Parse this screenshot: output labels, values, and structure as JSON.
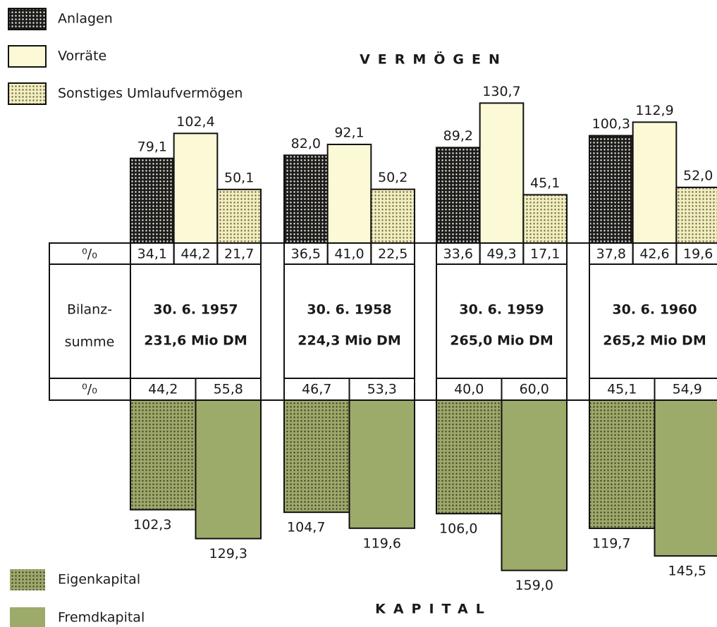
{
  "chart_data": {
    "type": "balance",
    "title_top": "VERMÖGEN",
    "title_bottom": "KAPITAL",
    "percent_label": "⁰/₀",
    "total_label": [
      "Bilanz-",
      "summe"
    ],
    "categories": [
      "30. 6. 1957",
      "30. 6. 1958",
      "30. 6. 1959",
      "30. 6. 1960"
    ],
    "totals": [
      "231,6 Mio DM",
      "224,3 Mio DM",
      "265,0 Mio DM",
      "265,2 Mio DM"
    ],
    "assets": [
      {
        "name": "Anlagen",
        "color": "#1c1c1c",
        "dot_color": "#f4f0e0",
        "values": [
          79.1,
          82.0,
          89.2,
          100.3
        ],
        "value_labels": [
          "79,1",
          "82,0",
          "89,2",
          "100,3"
        ],
        "shares": [
          34.1,
          36.5,
          33.6,
          37.8
        ],
        "share_labels": [
          "34,1",
          "36,5",
          "33,6",
          "37,8"
        ]
      },
      {
        "name": "Vorräte",
        "color": "#fcf9d6",
        "dot_color": null,
        "values": [
          102.4,
          92.1,
          130.7,
          112.9
        ],
        "value_labels": [
          "102,4",
          "92,1",
          "130,7",
          "112,9"
        ],
        "shares": [
          44.2,
          41.0,
          49.3,
          42.6
        ],
        "share_labels": [
          "44,2",
          "41,0",
          "49,3",
          "42,6"
        ]
      },
      {
        "name": "Sonstiges Umlaufvermögen",
        "color": "#f3eebe",
        "dot_color": "#6b6a4a",
        "values": [
          50.1,
          50.2,
          45.1,
          52.0
        ],
        "value_labels": [
          "50,1",
          "50,2",
          "45,1",
          "52,0"
        ],
        "shares": [
          21.7,
          22.5,
          17.1,
          19.6
        ],
        "share_labels": [
          "21,7",
          "22,5",
          "17,1",
          "19,6"
        ]
      }
    ],
    "liabilities": [
      {
        "name": "Eigenkapital",
        "color": "#9ea86a",
        "dot_color": "#3d4424",
        "values": [
          102.3,
          104.7,
          106.0,
          119.7
        ],
        "value_labels": [
          "102,3",
          "104,7",
          "106,0",
          "119,7"
        ],
        "shares": [
          44.2,
          46.7,
          40.0,
          45.1
        ],
        "share_labels": [
          "44,2",
          "46,7",
          "40,0",
          "45,1"
        ]
      },
      {
        "name": "Fremdkapital",
        "color": "#9cab6a",
        "dot_color": null,
        "values": [
          129.3,
          119.6,
          159.0,
          145.5
        ],
        "value_labels": [
          "129,3",
          "119,6",
          "159,0",
          "145,5"
        ],
        "shares": [
          55.8,
          53.3,
          60.0,
          54.9
        ],
        "share_labels": [
          "55,8",
          "53,3",
          "60,0",
          "54,9"
        ]
      }
    ]
  }
}
